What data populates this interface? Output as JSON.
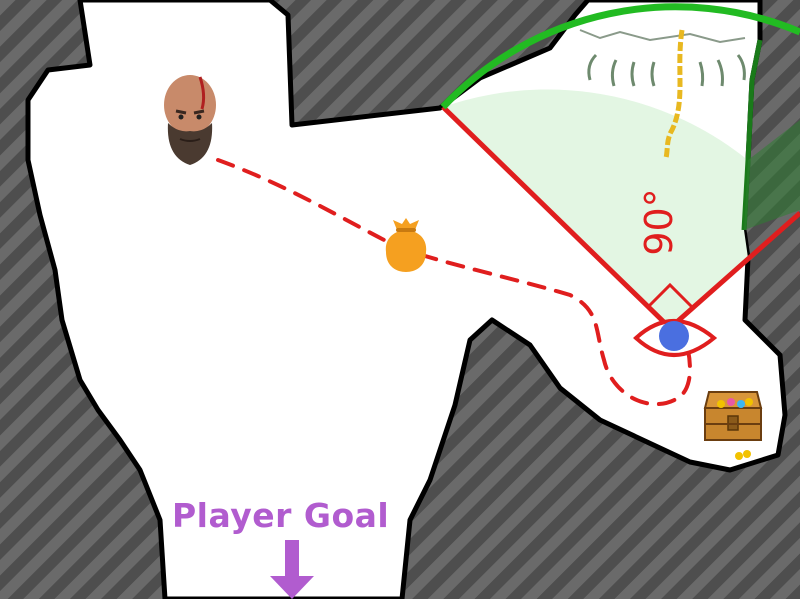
{
  "map": {
    "goal_label": "Player Goal",
    "vision_angle_label": "90°",
    "colors": {
      "wall_stripe_dark": "#4e4e4e",
      "wall_stripe_light": "#6a6a6a",
      "floor": "#ffffff",
      "outline": "#000000",
      "path": "#e01e1e",
      "cone_edge": "#e01e1e",
      "cone_arc": "#22bb22",
      "cone_fill": "#e3f6e3",
      "goal": "#b15ccf",
      "enemy": "#4a6fe0",
      "loot_bag": "#f5a020"
    }
  },
  "entities": {
    "player_icon": "bald-bearded-warrior-face",
    "loot_icon": "money-bag-icon",
    "treasure_icon": "treasure-chest-icon",
    "guard_icon": "eye-icon",
    "goal_icon": "arrow-down-icon"
  }
}
